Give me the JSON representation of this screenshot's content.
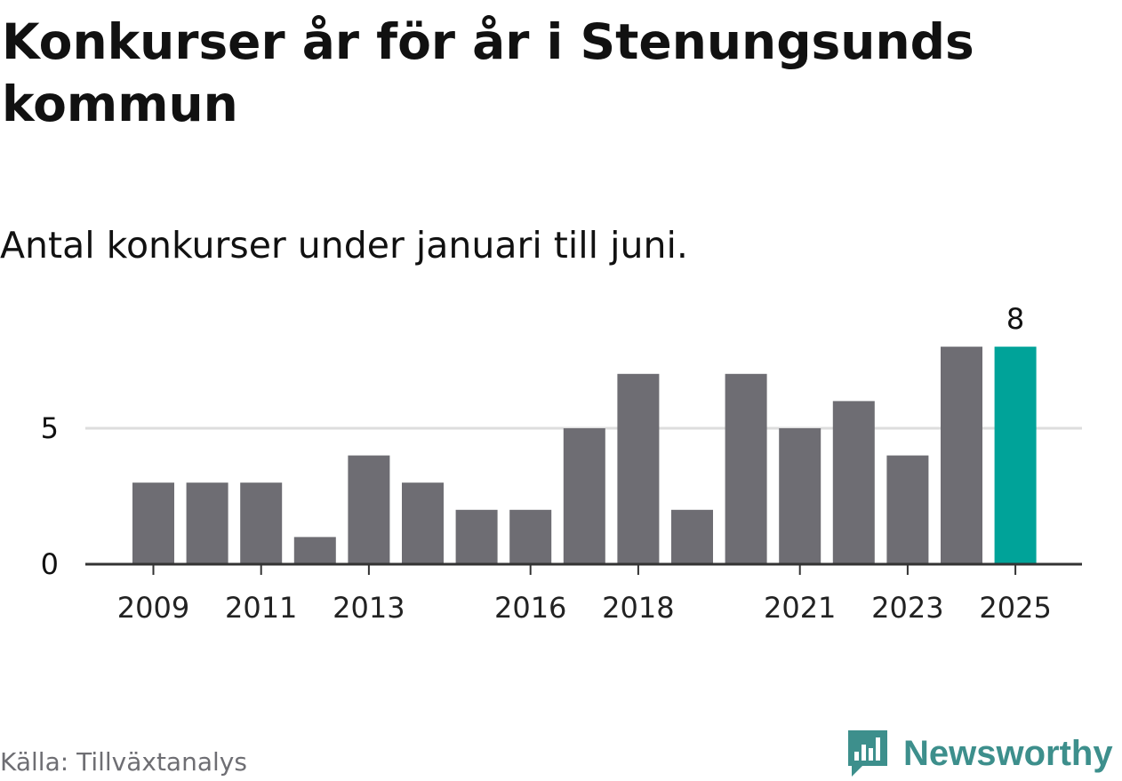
{
  "title": "Konkurser år för år i Stenungsunds kommun",
  "subtitle": "Antal konkurser under januari till juni.",
  "source": "Källa: Tillväxtanalys",
  "brand": {
    "name": "Newsworthy",
    "icon": "bar-chart-speech-bubble-icon"
  },
  "colors": {
    "bar": "#6e6d73",
    "highlight": "#00a399",
    "brand": "#3d8f8c",
    "grid": "#dddddd",
    "axis": "#333333",
    "text": "#111111"
  },
  "chart_data": {
    "type": "bar",
    "categories": [
      "2009",
      "2010",
      "2011",
      "2012",
      "2013",
      "2014",
      "2015",
      "2016",
      "2017",
      "2018",
      "2019",
      "2020",
      "2021",
      "2022",
      "2023",
      "2024",
      "2025"
    ],
    "values": [
      3,
      3,
      3,
      1,
      4,
      3,
      2,
      2,
      5,
      7,
      2,
      7,
      5,
      6,
      4,
      8,
      8
    ],
    "x_tick_labels": [
      "2009",
      "2011",
      "2013",
      "2016",
      "2018",
      "2021",
      "2023",
      "2025"
    ],
    "y_ticks": [
      0,
      5
    ],
    "ylim": [
      0,
      8
    ],
    "grid": true,
    "highlight_category": "2025",
    "data_labels": [
      {
        "category": "2025",
        "text": "8"
      }
    ]
  }
}
